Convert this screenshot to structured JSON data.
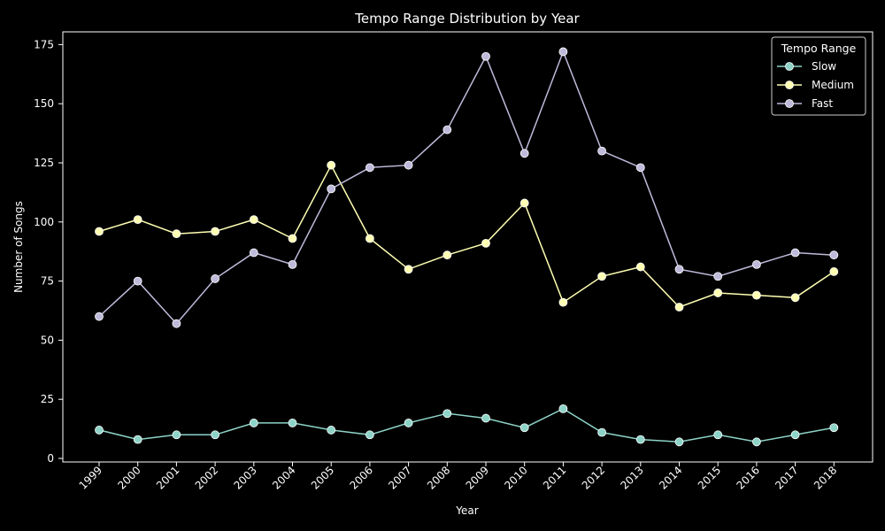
{
  "chart_data": {
    "type": "line",
    "title": "Tempo Range Distribution by Year",
    "xlabel": "Year",
    "ylabel": "Number of Songs",
    "x": [
      "1999",
      "2000",
      "2001",
      "2002",
      "2003",
      "2004",
      "2005",
      "2006",
      "2007",
      "2008",
      "2009",
      "2010",
      "2011",
      "2012",
      "2013",
      "2014",
      "2015",
      "2016",
      "2017",
      "2018"
    ],
    "ylim": [
      0,
      175
    ],
    "yticks": [
      0,
      25,
      50,
      75,
      100,
      125,
      150,
      175
    ],
    "grid": false,
    "legend": {
      "title": "Tempo Range",
      "placement": "top-right"
    },
    "background": "#000000",
    "foreground": "#ffffff",
    "series": [
      {
        "name": "Slow",
        "color": "#8dd3c7",
        "values": [
          12,
          8,
          10,
          10,
          15,
          15,
          12,
          10,
          15,
          19,
          17,
          13,
          21,
          11,
          8,
          7,
          10,
          7,
          10,
          13
        ]
      },
      {
        "name": "Medium",
        "color": "#ffffb3",
        "values": [
          96,
          101,
          95,
          96,
          101,
          93,
          124,
          93,
          80,
          86,
          91,
          108,
          66,
          77,
          81,
          64,
          70,
          69,
          68,
          79
        ]
      },
      {
        "name": "Fast",
        "color": "#bebada",
        "values": [
          60,
          75,
          57,
          76,
          87,
          82,
          114,
          123,
          124,
          139,
          170,
          129,
          172,
          130,
          123,
          80,
          77,
          82,
          87,
          86
        ]
      }
    ]
  }
}
